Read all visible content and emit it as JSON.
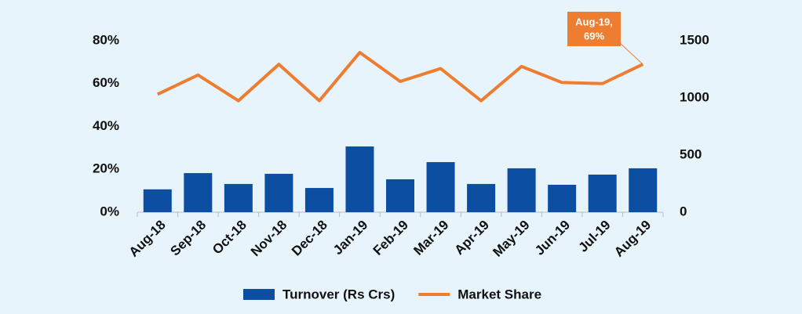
{
  "chart_data": {
    "type": "bar-line",
    "categories": [
      "Aug-18",
      "Sep-18",
      "Oct-18",
      "Nov-18",
      "Dec-18",
      "Jan-19",
      "Feb-19",
      "Mar-19",
      "Apr-19",
      "May-19",
      "Jun-19",
      "Jul-19",
      "Aug-19"
    ],
    "series": [
      {
        "name": "Turnover (Rs Crs)",
        "type": "bar",
        "axis": "y2",
        "color": "#0b4ea2",
        "values": [
          200,
          342,
          247,
          336,
          212,
          575,
          288,
          438,
          247,
          384,
          240,
          329,
          384
        ]
      },
      {
        "name": "Market Share",
        "type": "line",
        "axis": "y",
        "color": "#ed7d31",
        "values": [
          55,
          64,
          52,
          69,
          52,
          74.5,
          61,
          67,
          52,
          68,
          60.5,
          60,
          69
        ]
      }
    ],
    "ylim": [
      0,
      80
    ],
    "yticks": [
      {
        "value": 0,
        "label": "0%"
      },
      {
        "value": 20,
        "label": "20%"
      },
      {
        "value": 40,
        "label": "40%"
      },
      {
        "value": 60,
        "label": "60%"
      },
      {
        "value": 80,
        "label": "80%"
      }
    ],
    "y2lim": [
      0,
      1500
    ],
    "y2ticks": [
      0,
      500,
      1000,
      1500
    ],
    "grid": false,
    "legend": "bottom",
    "annotation": {
      "lines": [
        "Aug-19,",
        "69%"
      ],
      "color": "#ed7d31"
    }
  }
}
